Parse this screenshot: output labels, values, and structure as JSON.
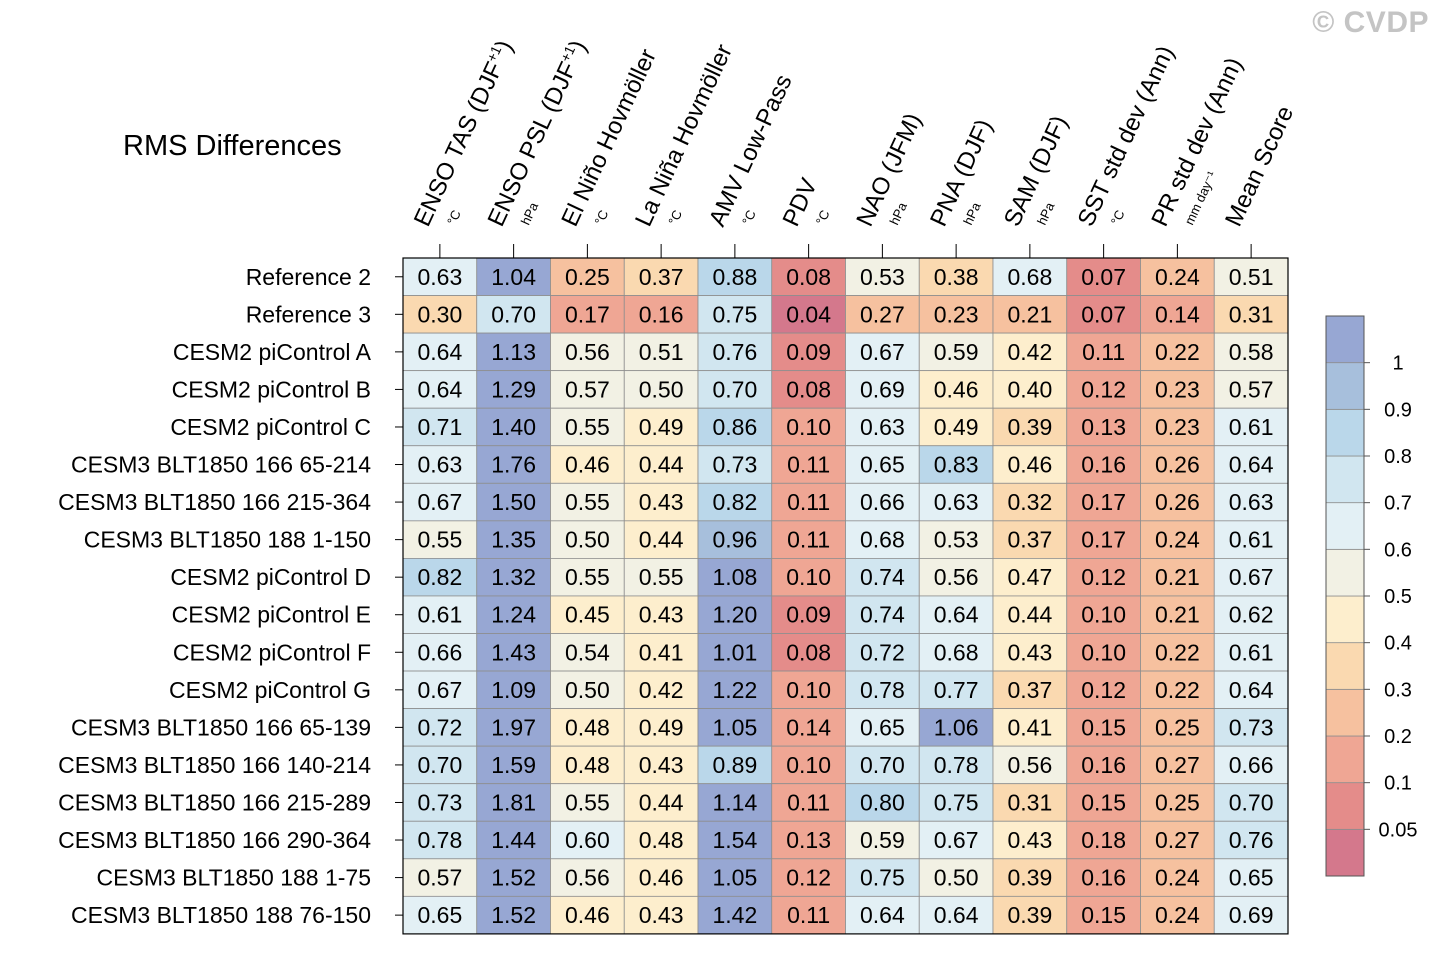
{
  "watermark": "© CVDP",
  "chart_data": {
    "type": "heatmap",
    "title": "RMS Differences",
    "columns": [
      {
        "label": "ENSO TAS (DJF",
        "sup": "+1",
        "close": ")",
        "unit": "°C"
      },
      {
        "label": "ENSO PSL (DJF",
        "sup": "+1",
        "close": ")",
        "unit": "hPa"
      },
      {
        "label": "El Niño Hovmöller",
        "sup": "",
        "close": "",
        "unit": "°C"
      },
      {
        "label": "La Niña Hovmöller",
        "sup": "",
        "close": "",
        "unit": "°C"
      },
      {
        "label": "AMV Low-Pass",
        "sup": "",
        "close": "",
        "unit": "°C"
      },
      {
        "label": "PDV",
        "sup": "",
        "close": "",
        "unit": "°C"
      },
      {
        "label": "NAO (JFM)",
        "sup": "",
        "close": "",
        "unit": "hPa"
      },
      {
        "label": "PNA (DJF)",
        "sup": "",
        "close": "",
        "unit": "hPa"
      },
      {
        "label": "SAM (DJF)",
        "sup": "",
        "close": "",
        "unit": "hPa"
      },
      {
        "label": "SST std dev (Ann)",
        "sup": "",
        "close": "",
        "unit": "°C"
      },
      {
        "label": "PR std dev (Ann)",
        "sup": "",
        "close": "",
        "unit": "mm day⁻¹"
      },
      {
        "label": "Mean Score",
        "sup": "",
        "close": "",
        "unit": ""
      }
    ],
    "rows": [
      {
        "name": "Reference 2",
        "values": [
          0.63,
          1.04,
          0.25,
          0.37,
          0.88,
          0.08,
          0.53,
          0.38,
          0.68,
          0.07,
          0.24,
          0.51
        ]
      },
      {
        "name": "Reference 3",
        "values": [
          0.3,
          0.7,
          0.17,
          0.16,
          0.75,
          0.04,
          0.27,
          0.23,
          0.21,
          0.07,
          0.14,
          0.31
        ]
      },
      {
        "name": "CESM2 piControl A",
        "values": [
          0.64,
          1.13,
          0.56,
          0.51,
          0.76,
          0.09,
          0.67,
          0.59,
          0.42,
          0.11,
          0.22,
          0.58
        ]
      },
      {
        "name": "CESM2 piControl B",
        "values": [
          0.64,
          1.29,
          0.57,
          0.5,
          0.7,
          0.08,
          0.69,
          0.46,
          0.4,
          0.12,
          0.23,
          0.57
        ]
      },
      {
        "name": "CESM2 piControl C",
        "values": [
          0.71,
          1.4,
          0.55,
          0.49,
          0.86,
          0.1,
          0.63,
          0.49,
          0.39,
          0.13,
          0.23,
          0.61
        ]
      },
      {
        "name": "CESM3 BLT1850 166 65-214",
        "values": [
          0.63,
          1.76,
          0.46,
          0.44,
          0.73,
          0.11,
          0.65,
          0.83,
          0.46,
          0.16,
          0.26,
          0.64
        ]
      },
      {
        "name": "CESM3 BLT1850 166 215-364",
        "values": [
          0.67,
          1.5,
          0.55,
          0.43,
          0.82,
          0.11,
          0.66,
          0.63,
          0.32,
          0.17,
          0.26,
          0.63
        ]
      },
      {
        "name": "CESM3 BLT1850 188 1-150",
        "values": [
          0.55,
          1.35,
          0.5,
          0.44,
          0.96,
          0.11,
          0.68,
          0.53,
          0.37,
          0.17,
          0.24,
          0.61
        ]
      },
      {
        "name": "CESM2 piControl D",
        "values": [
          0.82,
          1.32,
          0.55,
          0.55,
          1.08,
          0.1,
          0.74,
          0.56,
          0.47,
          0.12,
          0.21,
          0.67
        ]
      },
      {
        "name": "CESM2 piControl E",
        "values": [
          0.61,
          1.24,
          0.45,
          0.43,
          1.2,
          0.09,
          0.74,
          0.64,
          0.44,
          0.1,
          0.21,
          0.62
        ]
      },
      {
        "name": "CESM2 piControl F",
        "values": [
          0.66,
          1.43,
          0.54,
          0.41,
          1.01,
          0.08,
          0.72,
          0.68,
          0.43,
          0.1,
          0.22,
          0.61
        ]
      },
      {
        "name": "CESM2 piControl G",
        "values": [
          0.67,
          1.09,
          0.5,
          0.42,
          1.22,
          0.1,
          0.78,
          0.77,
          0.37,
          0.12,
          0.22,
          0.64
        ]
      },
      {
        "name": "CESM3 BLT1850 166 65-139",
        "values": [
          0.72,
          1.97,
          0.48,
          0.49,
          1.05,
          0.14,
          0.65,
          1.06,
          0.41,
          0.15,
          0.25,
          0.73
        ]
      },
      {
        "name": "CESM3 BLT1850 166 140-214",
        "values": [
          0.7,
          1.59,
          0.48,
          0.43,
          0.89,
          0.1,
          0.7,
          0.78,
          0.56,
          0.16,
          0.27,
          0.66
        ]
      },
      {
        "name": "CESM3 BLT1850 166 215-289",
        "values": [
          0.73,
          1.81,
          0.55,
          0.44,
          1.14,
          0.11,
          0.8,
          0.75,
          0.31,
          0.15,
          0.25,
          0.7
        ]
      },
      {
        "name": "CESM3 BLT1850 166 290-364",
        "values": [
          0.78,
          1.44,
          0.6,
          0.48,
          1.54,
          0.13,
          0.59,
          0.67,
          0.43,
          0.18,
          0.27,
          0.76
        ]
      },
      {
        "name": "CESM3 BLT1850 188 1-75",
        "values": [
          0.57,
          1.52,
          0.56,
          0.46,
          1.05,
          0.12,
          0.75,
          0.5,
          0.39,
          0.16,
          0.24,
          0.65
        ]
      },
      {
        "name": "CESM3 BLT1850 188 76-150",
        "values": [
          0.65,
          1.52,
          0.46,
          0.43,
          1.42,
          0.11,
          0.64,
          0.64,
          0.39,
          0.15,
          0.24,
          0.69
        ]
      }
    ],
    "colorbar": {
      "levels": [
        "0.05",
        "0.1",
        "0.2",
        "0.3",
        "0.4",
        "0.5",
        "0.6",
        "0.7",
        "0.8",
        "0.9",
        "1"
      ],
      "thresholds": [
        0.05,
        0.1,
        0.2,
        0.3,
        0.4,
        0.5,
        0.6,
        0.7,
        0.8,
        0.9,
        1.0
      ],
      "colors": [
        "#d4788c",
        "#e48c8a",
        "#efa694",
        "#f6c19f",
        "#fad9b0",
        "#fdeecd",
        "#f2f1e4",
        "#e3f0f5",
        "#d1e6f0",
        "#bad7ea",
        "#a7bfdc",
        "#97a7d3"
      ]
    }
  }
}
